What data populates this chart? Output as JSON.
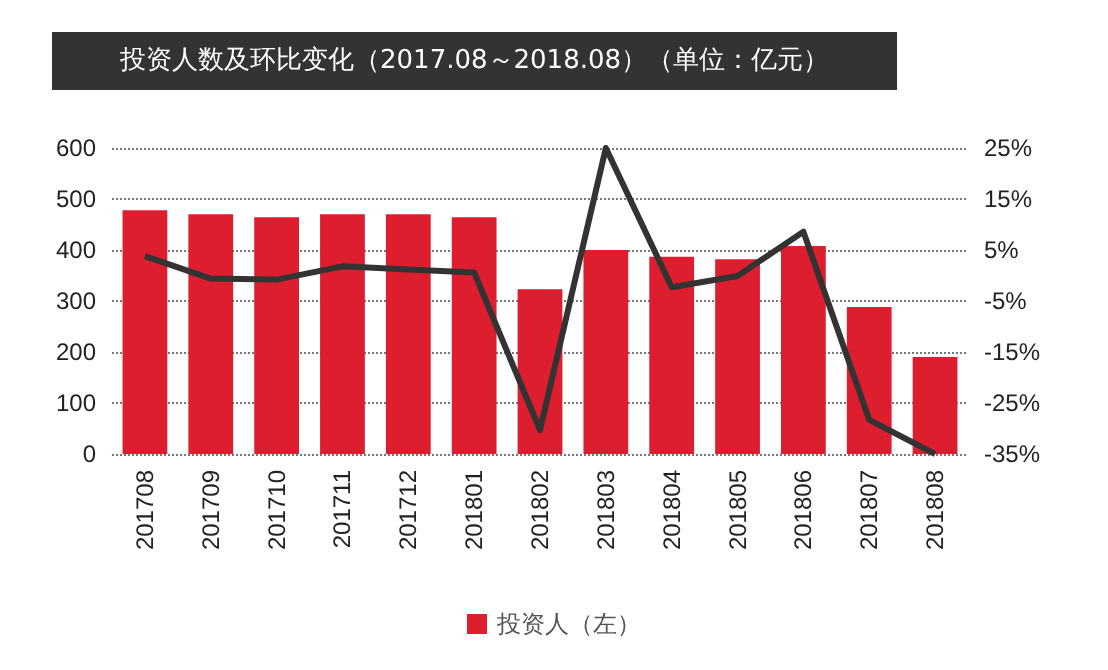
{
  "chart_data": {
    "type": "bar",
    "title": "投资人数及环比变化（2017.08～2018.08）（单位：亿元）",
    "categories": [
      "201708",
      "201709",
      "201710",
      "201711",
      "201712",
      "201801",
      "201802",
      "201803",
      "201804",
      "201805",
      "201806",
      "201807",
      "201808"
    ],
    "series": [
      {
        "name": "投资人（左）",
        "color": "#dc1e2e",
        "values": [
          478,
          470,
          464,
          470,
          470,
          464,
          323,
          400,
          387,
          382,
          408,
          288,
          190
        ]
      },
      {
        "type": "line",
        "axis": "y2",
        "color": "#333333",
        "values": [
          3.8,
          -0.6,
          -0.8,
          1.8,
          1.2,
          0.6,
          -30.3,
          25,
          -2.3,
          -0.1,
          8.6,
          -28.3,
          -35
        ]
      }
    ],
    "ylim": [
      0,
      600
    ],
    "yticks": [
      0,
      100,
      200,
      300,
      400,
      500,
      600
    ],
    "y2lim": [
      -35,
      25
    ],
    "y2ticks": [
      {
        "value": -35,
        "label": "-35%"
      },
      {
        "value": -25,
        "label": "-25%"
      },
      {
        "value": -15,
        "label": "-15%"
      },
      {
        "value": -5,
        "label": "-5%"
      },
      {
        "value": 5,
        "label": "5%"
      },
      {
        "value": 15,
        "label": "15%"
      },
      {
        "value": 25,
        "label": "25%"
      }
    ],
    "grid": "y",
    "legend": "bottom",
    "marker": "none",
    "line_style": "solid"
  }
}
